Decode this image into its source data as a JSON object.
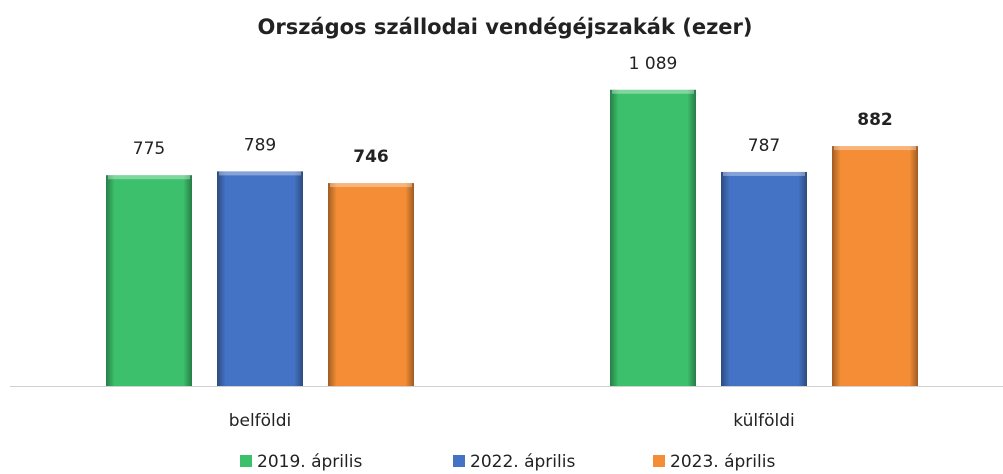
{
  "chart_data": {
    "type": "bar",
    "title": "Országos szállodai vendégéjszakák (ezer)",
    "categories": [
      "belföldi",
      "külföldi"
    ],
    "series": [
      {
        "name": "2019. április",
        "color": "#3cc06b",
        "values": [
          775,
          1089
        ],
        "value_labels": [
          "775",
          "1 089"
        ]
      },
      {
        "name": "2022. április",
        "color": "#4472c4",
        "values": [
          789,
          787
        ]
      },
      {
        "name": "2023. április",
        "color": "#f48d35",
        "values": [
          746,
          882
        ]
      }
    ],
    "legend": "bottom"
  }
}
